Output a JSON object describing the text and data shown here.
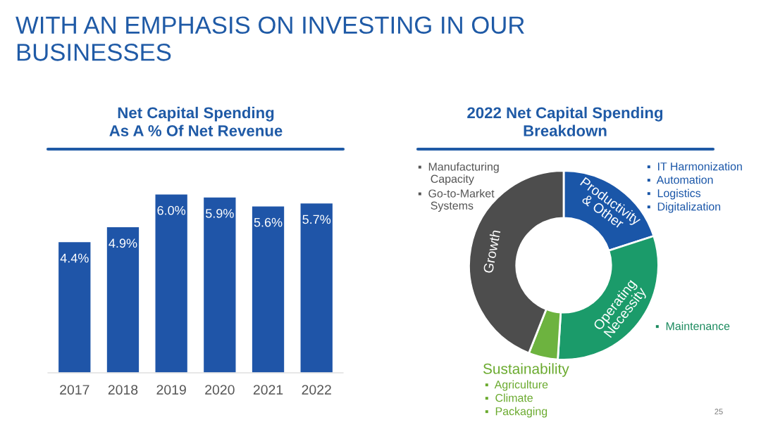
{
  "chart_data": [
    {
      "type": "bar",
      "title": "Net Capital Spending\nAs A % Of Net Revenue",
      "categories": [
        "2017",
        "2018",
        "2019",
        "2020",
        "2021",
        "2022"
      ],
      "values": [
        4.4,
        4.9,
        6.0,
        5.9,
        5.6,
        5.7
      ],
      "value_labels": [
        "4.4%",
        "4.9%",
        "6.0%",
        "5.9%",
        "5.6%",
        "5.7%"
      ],
      "color": "#1f55a8",
      "tick_labels": "x",
      "grid": false,
      "legend": false,
      "annotations": [
        "WITH AN EMPHASIS ON INVESTING IN OUR\nBUSINESSES"
      ]
    },
    {
      "type": "donut",
      "title": "2022 Net Capital Spending\nBreakdown",
      "categories": [
        "Productivity & Other",
        "Operating Necessity",
        "Sustainability",
        "Growth"
      ],
      "values": [
        20,
        31,
        5,
        44
      ],
      "colors": [
        "#1a56a8",
        "#1b9b6a",
        "#6db33f",
        "#4d4d4d"
      ],
      "legend": false,
      "annotations": [
        "▪  Manufacturing\n    Capacity",
        "▪  Go-to-Market\n    Systems",
        "▪  IT Harmonization",
        "▪  Automation",
        "▪  Logistics",
        "▪  Digitalization",
        "▪  Maintenance",
        "▪  Agriculture",
        "▪  Climate",
        "▪  Packaging",
        "25"
      ]
    }
  ]
}
